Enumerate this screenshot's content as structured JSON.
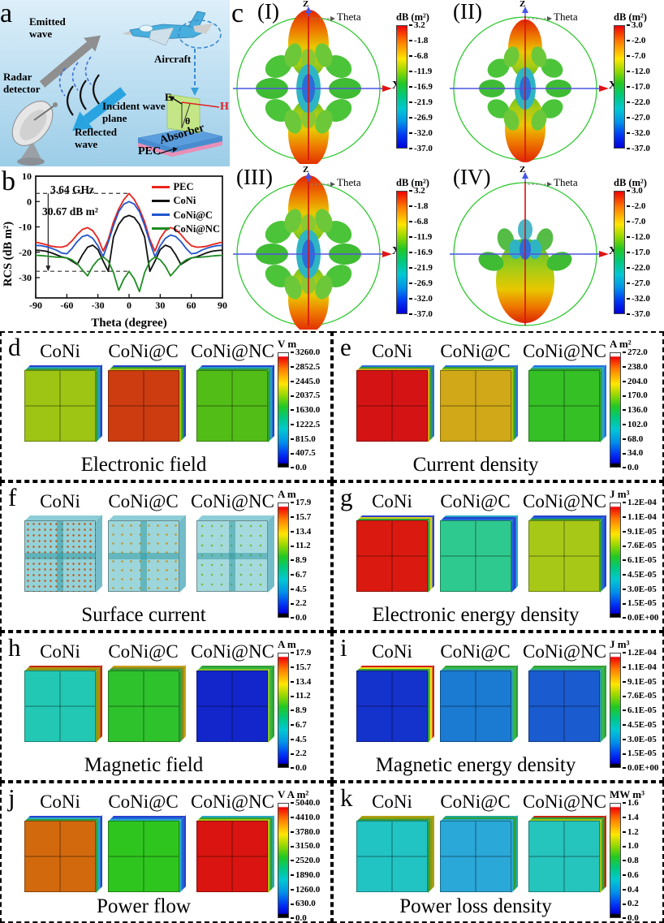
{
  "panel_a": {
    "id": "a",
    "labels": {
      "emitted_wave": "Emitted wave",
      "aircraft": "Aircraft",
      "radar_detector": "Radar detector",
      "incident_wave_plane": "Incident wave plane",
      "reflected_wave": "Reflected wave",
      "absorber": "Absorber",
      "pec": "PEC",
      "e_field": "E",
      "h_field": "H",
      "theta": "θ"
    }
  },
  "panel_b": {
    "id": "b",
    "chart_data": {
      "type": "line",
      "xlabel": "Theta (degree)",
      "ylabel": "RCS (dB m²)",
      "xlim": [
        -90,
        90
      ],
      "ylim": [
        -38,
        10
      ],
      "xticks": [
        -90,
        -60,
        -30,
        0,
        30,
        60,
        90
      ],
      "yticks": [
        10,
        0,
        -10,
        -20,
        -30
      ],
      "legend_position": "top-right",
      "grid": false,
      "annotations": {
        "freq": "3.64 GHz",
        "delta": "30.67 dB m²",
        "dash_y": [
          3.2,
          -27.5
        ],
        "arrow_x": -78
      },
      "x": [
        -90,
        -85,
        -80,
        -75,
        -70,
        -65,
        -60,
        -55,
        -50,
        -45,
        -40,
        -35,
        -30,
        -25,
        -20,
        -15,
        -10,
        -5,
        0,
        5,
        10,
        15,
        20,
        25,
        30,
        35,
        40,
        45,
        50,
        55,
        60,
        65,
        70,
        75,
        80,
        85,
        90
      ],
      "series": [
        {
          "name": "PEC",
          "color": "#e8241c",
          "values": [
            -16,
            -16.5,
            -17,
            -17.6,
            -17.9,
            -18,
            -17.4,
            -15.5,
            -13,
            -11,
            -10.3,
            -11.5,
            -14.5,
            -19.5,
            -15,
            -8,
            -3,
            0.8,
            3.2,
            0.8,
            -3,
            -8,
            -15,
            -19.5,
            -14.5,
            -11.5,
            -10.3,
            -11,
            -13,
            -15.5,
            -17.4,
            -18,
            -17.9,
            -17.6,
            -17,
            -16.5,
            -16
          ]
        },
        {
          "name": "CoNi",
          "color": "#111111",
          "values": [
            -19.2,
            -19.3,
            -19.6,
            -20.2,
            -21,
            -21.8,
            -22.3,
            -23.5,
            -24.8,
            -21,
            -18,
            -17.2,
            -19,
            -23.5,
            -27.5,
            -14,
            -9,
            -6.3,
            -5.5,
            -6.3,
            -9,
            -14,
            -27.5,
            -23.5,
            -19,
            -17.2,
            -18,
            -21,
            -24.8,
            -23.5,
            -22.3,
            -21.8,
            -21,
            -20.2,
            -19.6,
            -19.3,
            -19.2
          ]
        },
        {
          "name": "CoNi@C",
          "color": "#2255cc",
          "values": [
            -17.3,
            -17.4,
            -17.8,
            -18.4,
            -19.2,
            -20.3,
            -20.6,
            -18.5,
            -15.8,
            -13.8,
            -13.2,
            -14.5,
            -17.5,
            -21.7,
            -16,
            -9.5,
            -4,
            -1,
            0,
            -1,
            -4,
            -9.5,
            -16,
            -21.7,
            -17.5,
            -14.5,
            -13.2,
            -13.8,
            -15.8,
            -18.5,
            -20.6,
            -20.3,
            -19.2,
            -18.4,
            -17.8,
            -17.4,
            -17.3
          ]
        },
        {
          "name": "CoNi@NC",
          "color": "#1e8c22",
          "values": [
            -21.2,
            -21.3,
            -21.5,
            -21.7,
            -21.9,
            -22,
            -22.2,
            -23,
            -24.5,
            -27,
            -29.3,
            -25.5,
            -23,
            -21.8,
            -23.5,
            -28,
            -35,
            -30.5,
            -27.5,
            -30.5,
            -35.5,
            -28,
            -23.5,
            -21.8,
            -23,
            -25.5,
            -29.3,
            -27,
            -24.5,
            -23,
            -22.2,
            -22,
            -21.9,
            -21.7,
            -21.5,
            -21.3,
            -21.2
          ]
        }
      ]
    }
  },
  "panel_c": {
    "id": "c",
    "axis": {
      "z": "Z",
      "x": "X",
      "theta": "Theta"
    },
    "subpanels": [
      {
        "label": "(I)",
        "pattern": "A",
        "colorbar": {
          "unit": "dB (m²)",
          "caps": false,
          "ticks": [
            "3.2",
            "-1.8",
            "-6.8",
            "-11.9",
            "-16.9",
            "-21.9",
            "-26.9",
            "-32.0",
            "-37.0"
          ]
        }
      },
      {
        "label": "(II)",
        "pattern": "B",
        "colorbar": {
          "unit": "dB (m²)",
          "caps": false,
          "ticks": [
            "3.0",
            "-2.0",
            "-7.0",
            "-12.0",
            "-17.0",
            "-22.0",
            "-27.0",
            "-32.0",
            "-37.0"
          ]
        }
      },
      {
        "label": "(III)",
        "pattern": "A",
        "colorbar": {
          "unit": "dB (m²)",
          "caps": false,
          "ticks": [
            "3.2",
            "-1.8",
            "-6.8",
            "-11.9",
            "-16.9",
            "-21.9",
            "-26.9",
            "-32.0",
            "-37.0"
          ]
        }
      },
      {
        "label": "(IV)",
        "pattern": "C",
        "colorbar": {
          "unit": "dB (m²)",
          "caps": false,
          "ticks": [
            "3.0",
            "-2.0",
            "-7.0",
            "-12.0",
            "-17.0",
            "-22.0",
            "-27.0",
            "-32.0",
            "-37.0"
          ]
        }
      }
    ]
  },
  "bottom_panels": [
    {
      "id": "d",
      "caption": "Electronic field",
      "samples": [
        {
          "name": "CoNi",
          "face": "#9ec414",
          "edges": [
            "#2f9e38",
            "#2a9ec0",
            "#2743cc"
          ]
        },
        {
          "name": "CoNi@C",
          "face": "#cc3c10",
          "edges": [
            "#9ec414",
            "#2f9e38",
            "#2743cc"
          ]
        },
        {
          "name": "CoNi@NC",
          "face": "#52bd17",
          "edges": [
            "#2f9e38",
            "#22a0c4",
            "#2743cc"
          ]
        }
      ],
      "colorbar": {
        "unit": "V m",
        "caps": true,
        "ticks": [
          "3260.0",
          "2852.5",
          "2445.0",
          "2037.5",
          "1630.0",
          "1222.5",
          "815.0",
          "407.5",
          "0.0"
        ]
      }
    },
    {
      "id": "e",
      "caption": "Current density",
      "samples": [
        {
          "name": "CoNi",
          "face": "#d41414",
          "edges": [
            "#d4a016",
            "#2f9e38",
            "#2a6ee0"
          ]
        },
        {
          "name": "CoNi@C",
          "face": "#d0a818",
          "edges": [
            "#9ec414",
            "#2f9e38",
            "#2a6ee0"
          ]
        },
        {
          "name": "CoNi@NC",
          "face": "#35c026",
          "edges": [
            "#2f9e38",
            "#28a8c8",
            "#2a6ee0"
          ]
        }
      ],
      "colorbar": {
        "unit": "A m²",
        "caps": true,
        "ticks": [
          "272.0",
          "238.0",
          "204.0",
          "170.0",
          "136.0",
          "102.0",
          "68.0",
          "34.0",
          "0.0"
        ]
      }
    },
    {
      "id": "f",
      "caption": "Surface current",
      "samples": [
        {
          "name": "CoNi",
          "face": "#93d2d8",
          "dots": "#c05a20",
          "dot_gap": 7
        },
        {
          "name": "CoNi@C",
          "face": "#9cd6da",
          "dots": "#c89428",
          "dot_gap": 11
        },
        {
          "name": "CoNi@NC",
          "face": "#a4dade",
          "dots": "#7cb83c",
          "dot_gap": 12
        }
      ],
      "colorbar": {
        "unit": "A m",
        "caps": true,
        "ticks": [
          "17.9",
          "15.7",
          "13.4",
          "11.2",
          "8.9",
          "6.7",
          "4.5",
          "2.2",
          "0.0"
        ]
      }
    },
    {
      "id": "g",
      "caption": "Electronic energy density",
      "samples": [
        {
          "name": "CoNi",
          "face": "#da1a10",
          "edges": [
            "#2f9e38",
            "#d8d020",
            "#2743cc"
          ]
        },
        {
          "name": "CoNi@C",
          "face": "#2ec98e",
          "edges": [
            "#2066d8",
            "#2743cc",
            "#28a8c8"
          ]
        },
        {
          "name": "CoNi@NC",
          "face": "#a8c818",
          "edges": [
            "#2f9e38",
            "#2066d8",
            "#2743cc"
          ]
        }
      ],
      "colorbar": {
        "unit": "J m³",
        "caps": true,
        "ticks": [
          "1.2E-04",
          "1.1E-04",
          "9.1E-05",
          "7.6E-05",
          "6.1E-05",
          "4.5E-05",
          "3.0E-05",
          "1.5E-05",
          "0.0E+00"
        ]
      }
    },
    {
      "id": "h",
      "caption": "Magnetic field",
      "samples": [
        {
          "name": "CoNi",
          "face": "#23c8b4",
          "edges": [
            "#8a9a14",
            "#b09010",
            "#c22810"
          ]
        },
        {
          "name": "CoNi@C",
          "face": "#2ec22c",
          "edges": [
            "#2f9e38",
            "#8a8a20",
            "#c8a018"
          ]
        },
        {
          "name": "CoNi@NC",
          "face": "#1226cc",
          "edges": [
            "#8ac02a",
            "#32b43c",
            "#2f9e38"
          ]
        }
      ],
      "colorbar": {
        "unit": "A m",
        "caps": true,
        "ticks": [
          "17.9",
          "15.7",
          "13.4",
          "11.2",
          "8.9",
          "6.7",
          "4.5",
          "2.2",
          "0.0"
        ]
      }
    },
    {
      "id": "i",
      "caption": "Magnetic energy density",
      "samples": [
        {
          "name": "CoNi",
          "face": "#1432cc",
          "edges": [
            "#2f9e38",
            "#e8e020",
            "#d42010"
          ]
        },
        {
          "name": "CoNi@C",
          "face": "#1b7ad2",
          "edges": [
            "#2aa49c",
            "#38b848",
            "#2f9e38"
          ]
        },
        {
          "name": "CoNi@NC",
          "face": "#1a5bd0",
          "edges": [
            "#2aa49c",
            "#38b848",
            "#2f9e38"
          ]
        }
      ],
      "colorbar": {
        "unit": "J m³",
        "caps": true,
        "ticks": [
          "1.2E-04",
          "1.1E-04",
          "9.1E-05",
          "7.6E-05",
          "6.1E-05",
          "4.5E-05",
          "3.0E-05",
          "1.5E-05",
          "0.0E+00"
        ]
      }
    },
    {
      "id": "j",
      "caption": "Power flow",
      "samples": [
        {
          "name": "CoNi",
          "face": "#d2690d",
          "edges": [
            "#2f9e38",
            "#28a8c8",
            "#2743cc"
          ]
        },
        {
          "name": "CoNi@C",
          "face": "#2ec61e",
          "edges": [
            "#28a8c8",
            "#2066d8",
            "#2743cc"
          ]
        },
        {
          "name": "CoNi@NC",
          "face": "#da1410",
          "edges": [
            "#9ec414",
            "#2f9e38",
            "#28a8c8"
          ]
        }
      ],
      "colorbar": {
        "unit": "V A m²",
        "caps": true,
        "ticks": [
          "5040.0",
          "4410.0",
          "3780.0",
          "3150.0",
          "2520.0",
          "1890.0",
          "1260.0",
          "630.0",
          "0.0"
        ]
      }
    },
    {
      "id": "k",
      "caption": "Power loss density",
      "samples": [
        {
          "name": "CoNi",
          "face": "#22c3c3",
          "edges": [
            "#2f9e38",
            "#8a9a14",
            "#b0a012"
          ]
        },
        {
          "name": "CoNi@C",
          "face": "#2aa8d8",
          "edges": [
            "#28a8c8",
            "#2f9e38",
            "#22a89c"
          ]
        },
        {
          "name": "CoNi@NC",
          "face": "#25c4bc",
          "edges": [
            "#9ec414",
            "#2f9e38",
            "#c22810"
          ]
        }
      ],
      "colorbar": {
        "unit": "MW m³",
        "caps": true,
        "ticks": [
          "1.6",
          "1.4",
          "1.2",
          "1.0",
          "0.8",
          "0.6",
          "0.4",
          "0.2",
          "0.0"
        ]
      }
    }
  ]
}
